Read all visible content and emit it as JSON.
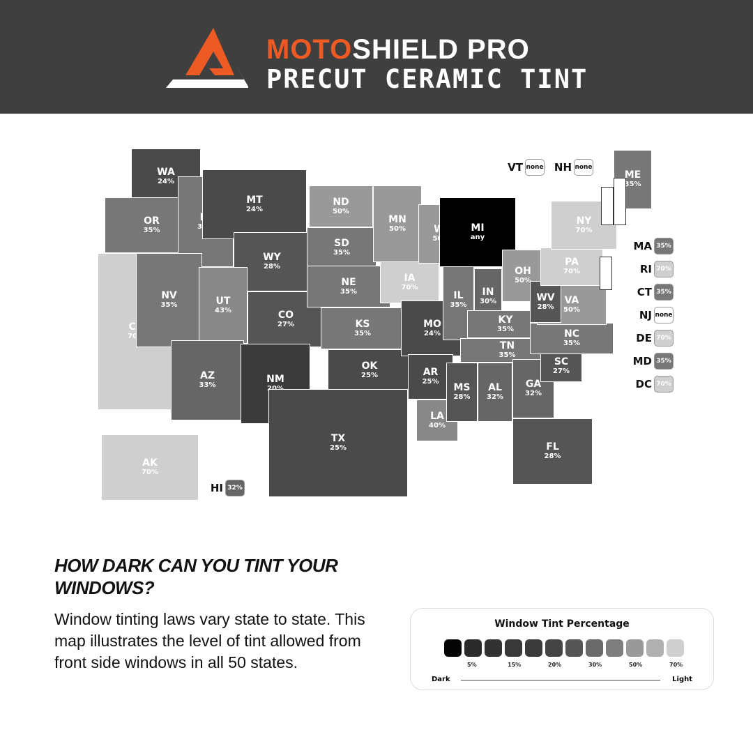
{
  "header": {
    "brand_a": "MOTO",
    "brand_b": "SHIELD PRO",
    "subtitle": "PRECUT CERAMIC TINT",
    "accent": "#ee5a24",
    "background": "#3f3f3f"
  },
  "states": [
    {
      "abbr": "WA",
      "value": "24%"
    },
    {
      "abbr": "OR",
      "value": "35%"
    },
    {
      "abbr": "CA",
      "value": "70%"
    },
    {
      "abbr": "ID",
      "value": "35%"
    },
    {
      "abbr": "NV",
      "value": "35%"
    },
    {
      "abbr": "MT",
      "value": "24%"
    },
    {
      "abbr": "WY",
      "value": "28%"
    },
    {
      "abbr": "UT",
      "value": "43%"
    },
    {
      "abbr": "CO",
      "value": "27%"
    },
    {
      "abbr": "AZ",
      "value": "33%"
    },
    {
      "abbr": "NM",
      "value": "20%"
    },
    {
      "abbr": "ND",
      "value": "50%"
    },
    {
      "abbr": "SD",
      "value": "35%"
    },
    {
      "abbr": "NE",
      "value": "35%"
    },
    {
      "abbr": "KS",
      "value": "35%"
    },
    {
      "abbr": "OK",
      "value": "25%"
    },
    {
      "abbr": "TX",
      "value": "25%"
    },
    {
      "abbr": "MN",
      "value": "50%"
    },
    {
      "abbr": "IA",
      "value": "70%"
    },
    {
      "abbr": "MO",
      "value": "24%"
    },
    {
      "abbr": "AR",
      "value": "25%"
    },
    {
      "abbr": "LA",
      "value": "40%"
    },
    {
      "abbr": "WI",
      "value": "50%"
    },
    {
      "abbr": "IL",
      "value": "35%"
    },
    {
      "abbr": "MI",
      "value": "any"
    },
    {
      "abbr": "IN",
      "value": "30%"
    },
    {
      "abbr": "OH",
      "value": "50%"
    },
    {
      "abbr": "KY",
      "value": "35%"
    },
    {
      "abbr": "TN",
      "value": "35%"
    },
    {
      "abbr": "MS",
      "value": "28%"
    },
    {
      "abbr": "AL",
      "value": "32%"
    },
    {
      "abbr": "GA",
      "value": "32%"
    },
    {
      "abbr": "FL",
      "value": "28%"
    },
    {
      "abbr": "SC",
      "value": "27%"
    },
    {
      "abbr": "NC",
      "value": "35%"
    },
    {
      "abbr": "VA",
      "value": "50%"
    },
    {
      "abbr": "WV",
      "value": "28%"
    },
    {
      "abbr": "PA",
      "value": "70%"
    },
    {
      "abbr": "NY",
      "value": "70%"
    },
    {
      "abbr": "ME",
      "value": "35%"
    },
    {
      "abbr": "AK",
      "value": "70%"
    }
  ],
  "callouts": [
    {
      "abbr": "VT",
      "value": "none"
    },
    {
      "abbr": "NH",
      "value": "none"
    },
    {
      "abbr": "HI",
      "value": "32%"
    },
    {
      "abbr": "MA",
      "value": "35%"
    },
    {
      "abbr": "RI",
      "value": "70%"
    },
    {
      "abbr": "CT",
      "value": "35%"
    },
    {
      "abbr": "NJ",
      "value": "none"
    },
    {
      "abbr": "DE",
      "value": "70%"
    },
    {
      "abbr": "MD",
      "value": "35%"
    },
    {
      "abbr": "DC",
      "value": "70%"
    }
  ],
  "text": {
    "question": "HOW DARK CAN YOU TINT YOUR WINDOWS?",
    "description": "Window tinting laws vary state to state. This map illustrates the level of tint allowed from front side windows in all 50 states."
  },
  "legend": {
    "title": "Window Tint Percentage",
    "labels": [
      "5%",
      "15%",
      "20%",
      "30%",
      "50%",
      "70%"
    ],
    "dark": "Dark",
    "light": "Light",
    "swatches": [
      "#050505",
      "#2a2a2a",
      "#323232",
      "#383838",
      "#3b3b3b",
      "#444444",
      "#555555",
      "#6a6a6a",
      "#7e7e7e",
      "#999999",
      "#b0b0b0",
      "#cfcfcf"
    ]
  }
}
